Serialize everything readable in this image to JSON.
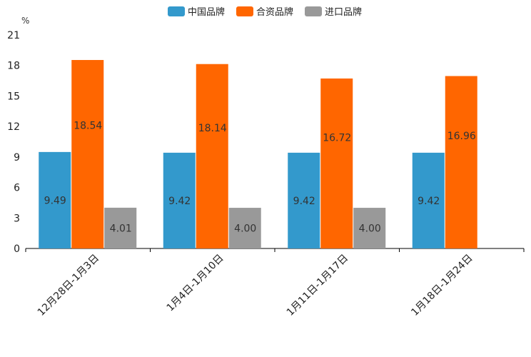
{
  "chart_data": {
    "type": "bar",
    "title": "",
    "xlabel": "",
    "ylabel": "%",
    "ylim": [
      0,
      21
    ],
    "yticks": [
      0,
      3,
      6,
      9,
      12,
      15,
      18,
      21
    ],
    "categories": [
      "12月28日-1月3日",
      "1月4日-1月10日",
      "1月11日-1月17日",
      "1月18日-1月24日"
    ],
    "series": [
      {
        "name": "中国品牌",
        "color": "#3399cc",
        "values": [
          9.49,
          9.42,
          9.42,
          9.42
        ],
        "labels": [
          "9.49",
          "9.42",
          "9.42",
          "9.42"
        ]
      },
      {
        "name": "合资品牌",
        "color": "#ff6600",
        "values": [
          18.54,
          18.14,
          16.72,
          16.96
        ],
        "labels": [
          "18.54",
          "18.14",
          "16.72",
          "16.96"
        ]
      },
      {
        "name": "进口品牌",
        "color": "#999999",
        "values": [
          4.01,
          4.0,
          4.0,
          null
        ],
        "labels": [
          "4.01",
          "4.00",
          "4.00",
          null
        ]
      }
    ],
    "legend": "top-center",
    "grid": false
  }
}
